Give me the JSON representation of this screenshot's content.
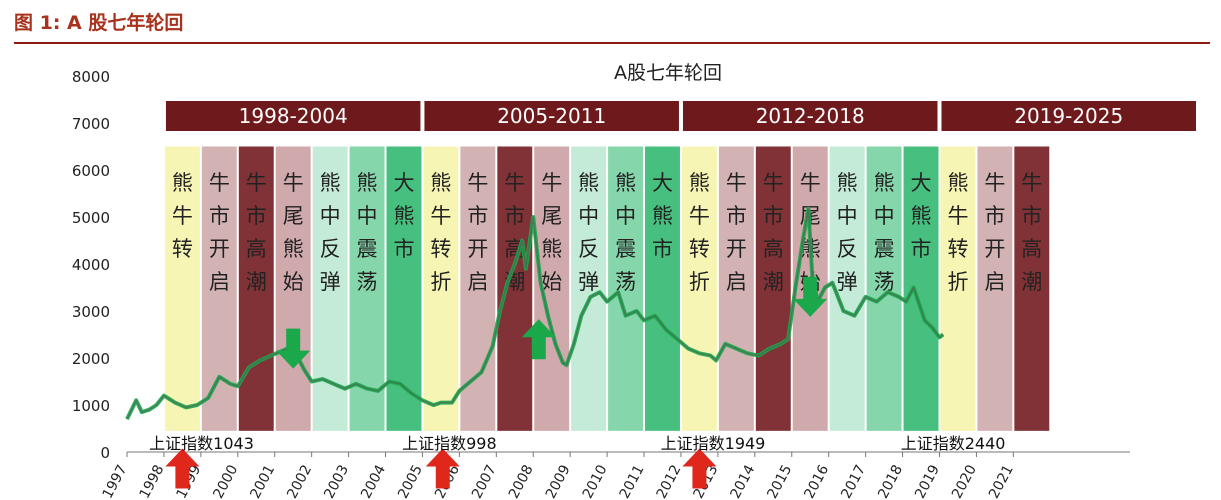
{
  "figure_title": "图 1:  A 股七年轮回",
  "chart_data": {
    "type": "line",
    "title": "A股七年轮回",
    "ylim": [
      0,
      8000
    ],
    "yticks": [
      0,
      1000,
      2000,
      3000,
      4000,
      5000,
      6000,
      7000,
      8000
    ],
    "xlim": [
      1997,
      2026
    ],
    "xticks": [
      "1997",
      "1998",
      "1999",
      "2000",
      "2001",
      "2002",
      "2003",
      "2004",
      "2005",
      "2006",
      "2007",
      "2008",
      "2009",
      "2010",
      "2011",
      "2012",
      "2013",
      "2014",
      "2015",
      "2016",
      "2017",
      "2018",
      "2019",
      "2020",
      "2021"
    ],
    "eras": [
      {
        "label": "1998-2004",
        "start": 1998,
        "end": 2005
      },
      {
        "label": "2005-2011",
        "start": 2005,
        "end": 2012
      },
      {
        "label": "2012-2018",
        "start": 2012,
        "end": 2019
      },
      {
        "label": "2019-2025",
        "start": 2019,
        "end": 2026
      }
    ],
    "phases": [
      {
        "label": "熊牛转",
        "start": 1998.0,
        "end": 1999.0,
        "color": "#f7f5b4"
      },
      {
        "label": "牛市开启",
        "start": 1999.0,
        "end": 2000.0,
        "color": "#d3b2b3"
      },
      {
        "label": "牛市高潮",
        "start": 2000.0,
        "end": 2001.0,
        "color": "#813236"
      },
      {
        "label": "牛尾熊始",
        "start": 2001.0,
        "end": 2002.0,
        "color": "#cfa9ab"
      },
      {
        "label": "熊中反弹",
        "start": 2002.0,
        "end": 2003.0,
        "color": "#c3ebd7"
      },
      {
        "label": "熊中震荡",
        "start": 2003.0,
        "end": 2004.0,
        "color": "#86d6ab"
      },
      {
        "label": "大熊市",
        "start": 2004.0,
        "end": 2005.0,
        "color": "#47bf7e"
      },
      {
        "label": "熊牛转折",
        "start": 2005.0,
        "end": 2006.0,
        "color": "#f7f5b4"
      },
      {
        "label": "牛市开启",
        "start": 2006.0,
        "end": 2007.0,
        "color": "#d3b2b3"
      },
      {
        "label": "牛市高潮",
        "start": 2007.0,
        "end": 2008.0,
        "color": "#813236"
      },
      {
        "label": "牛尾熊始",
        "start": 2008.0,
        "end": 2009.0,
        "color": "#cfa9ab"
      },
      {
        "label": "熊中反弹",
        "start": 2009.0,
        "end": 2010.0,
        "color": "#c3ebd7"
      },
      {
        "label": "熊中震荡",
        "start": 2010.0,
        "end": 2011.0,
        "color": "#86d6ab"
      },
      {
        "label": "大熊市",
        "start": 2011.0,
        "end": 2012.0,
        "color": "#47bf7e"
      },
      {
        "label": "熊牛转折",
        "start": 2012.0,
        "end": 2013.0,
        "color": "#f7f5b4"
      },
      {
        "label": "牛市开启",
        "start": 2013.0,
        "end": 2014.0,
        "color": "#d3b2b3"
      },
      {
        "label": "牛市高潮",
        "start": 2014.0,
        "end": 2015.0,
        "color": "#813236"
      },
      {
        "label": "牛尾熊始",
        "start": 2015.0,
        "end": 2016.0,
        "color": "#cfa9ab"
      },
      {
        "label": "熊中反弹",
        "start": 2016.0,
        "end": 2017.0,
        "color": "#c3ebd7"
      },
      {
        "label": "熊中震荡",
        "start": 2017.0,
        "end": 2018.0,
        "color": "#86d6ab"
      },
      {
        "label": "大熊市",
        "start": 2018.0,
        "end": 2019.0,
        "color": "#47bf7e"
      },
      {
        "label": "熊牛转折",
        "start": 2019.0,
        "end": 2020.0,
        "color": "#f7f5b4"
      },
      {
        "label": "牛市开启",
        "start": 2020.0,
        "end": 2021.0,
        "color": "#d3b2b3"
      },
      {
        "label": "牛市高潮",
        "start": 2021.0,
        "end": 2022.0,
        "color": "#813236"
      }
    ],
    "series": [
      {
        "x": [
          1997.0,
          1997.25,
          1997.4,
          1997.6,
          1997.8,
          1998.0,
          1998.3,
          1998.6,
          1998.9,
          1999.2,
          1999.5,
          1999.8,
          2000.0,
          2000.3,
          2000.6,
          2000.9,
          2001.2,
          2001.45,
          2001.6,
          2001.8,
          2002.0,
          2002.3,
          2002.6,
          2002.9,
          2003.2,
          2003.5,
          2003.8,
          2004.1,
          2004.4,
          2004.7,
          2005.0,
          2005.3,
          2005.5,
          2005.8,
          2006.0,
          2006.3,
          2006.6,
          2006.9,
          2007.1,
          2007.3,
          2007.5,
          2007.7,
          2007.8,
          2008.0,
          2008.2,
          2008.4,
          2008.6,
          2008.8,
          2008.9,
          2009.1,
          2009.3,
          2009.55,
          2009.8,
          2010.0,
          2010.3,
          2010.5,
          2010.8,
          2011.0,
          2011.3,
          2011.6,
          2011.9,
          2012.2,
          2012.5,
          2012.8,
          2012.95,
          2013.2,
          2013.5,
          2013.8,
          2014.1,
          2014.4,
          2014.7,
          2014.9,
          2015.1,
          2015.3,
          2015.45,
          2015.55,
          2015.7,
          2015.9,
          2016.1,
          2016.4,
          2016.7,
          2017.0,
          2017.3,
          2017.6,
          2017.9,
          2018.1,
          2018.3,
          2018.6,
          2018.8,
          2019.0,
          2019.1
        ],
        "values": [
          700,
          1100,
          850,
          900,
          1000,
          1200,
          1050,
          950,
          1000,
          1150,
          1600,
          1450,
          1400,
          1800,
          1950,
          2050,
          2150,
          2245,
          2050,
          1750,
          1500,
          1550,
          1450,
          1350,
          1450,
          1350,
          1300,
          1500,
          1450,
          1250,
          1100,
          998,
          1050,
          1050,
          1300,
          1500,
          1700,
          2250,
          3000,
          3600,
          4000,
          4500,
          3900,
          5000,
          3600,
          2900,
          2300,
          1900,
          1850,
          2300,
          2900,
          3300,
          3400,
          3200,
          3400,
          2900,
          3000,
          2800,
          2900,
          2600,
          2400,
          2200,
          2100,
          2050,
          1949,
          2300,
          2200,
          2100,
          2050,
          2200,
          2300,
          2400,
          3500,
          4500,
          5178,
          3800,
          3200,
          3500,
          3600,
          3000,
          2900,
          3300,
          3200,
          3400,
          3300,
          3200,
          3500,
          2800,
          2650,
          2440,
          2500
        ]
      }
    ]
  },
  "annotations": [
    {
      "text": "上证指数1043",
      "x": 1997.6
    },
    {
      "text": "上证指数998",
      "x": 2004.45
    },
    {
      "text": "上证指数1949",
      "x": 2011.45
    },
    {
      "text": "上证指数2440",
      "x": 2017.95
    }
  ],
  "markers": [
    {
      "type": "up",
      "icon": "red-up-arrow-icon",
      "color": "#e0271c",
      "x": 1998.5,
      "y": -350
    },
    {
      "type": "down",
      "icon": "green-down-arrow-icon",
      "color": "#1aa84b",
      "x": 2001.5,
      "y": 2200
    },
    {
      "type": "up",
      "icon": "red-up-arrow-icon",
      "color": "#e0271c",
      "x": 2005.55,
      "y": -350
    },
    {
      "type": "up",
      "icon": "green-up-arrow-icon",
      "color": "#1aa84b",
      "x": 2008.15,
      "y": 2400
    },
    {
      "type": "up",
      "icon": "red-up-arrow-icon",
      "color": "#e0271c",
      "x": 2012.5,
      "y": -350
    },
    {
      "type": "down",
      "icon": "green-down-arrow-icon",
      "color": "#1aa84b",
      "x": 2015.5,
      "y": 3300
    }
  ],
  "colors": {
    "era_band": "#6e1a1c",
    "line": "#1aa84b",
    "red_arrow": "#e0271c",
    "green_arrow": "#1aa84b",
    "accent": "#a8321c"
  }
}
